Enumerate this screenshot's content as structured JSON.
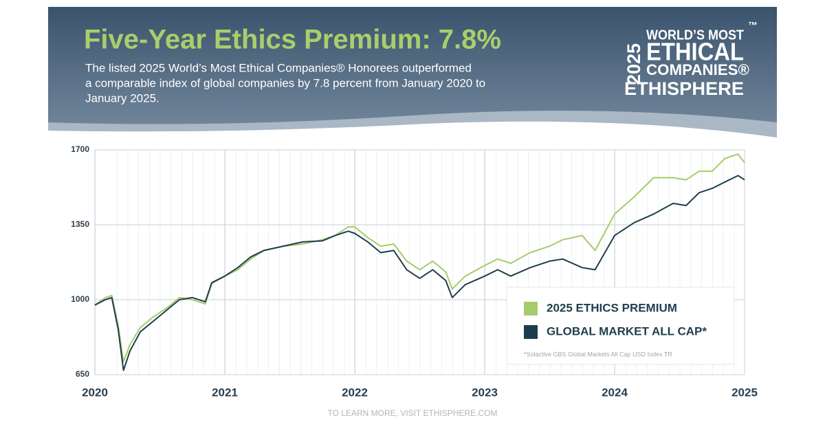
{
  "header": {
    "title": "Five-Year Ethics Premium: 7.8%",
    "subtitle": [
      "The listed 2025 World’s Most Ethical Companies® Honorees outperformed",
      "a comparable index of global companies by 7.8 percent  from January 2020 to",
      "January 2025."
    ],
    "logo": {
      "year": "2025",
      "line1": "WORLD’S MOST",
      "line2": "ETHICAL",
      "line3": "COMPANIES®",
      "brand": "ETHISPHERE",
      "tm": "™"
    }
  },
  "chart_data": {
    "type": "line",
    "x": [
      2020.0,
      2020.08,
      2020.13,
      2020.18,
      2020.22,
      2020.27,
      2020.35,
      2020.45,
      2020.55,
      2020.65,
      2020.75,
      2020.85,
      2020.9,
      2021.0,
      2021.1,
      2021.2,
      2021.3,
      2021.45,
      2021.6,
      2021.75,
      2021.85,
      2021.95,
      2022.0,
      2022.1,
      2022.2,
      2022.3,
      2022.4,
      2022.5,
      2022.6,
      2022.7,
      2022.75,
      2022.85,
      2023.0,
      2023.1,
      2023.2,
      2023.35,
      2023.5,
      2023.6,
      2023.75,
      2023.85,
      2024.0,
      2024.15,
      2024.3,
      2024.45,
      2024.55,
      2024.65,
      2024.75,
      2024.85,
      2024.95,
      2025.0
    ],
    "series": [
      {
        "name": "2025 ETHICS PREMIUM",
        "color": "#a6cb6b",
        "values": [
          975,
          1010,
          1020,
          880,
          710,
          790,
          870,
          920,
          960,
          1010,
          1000,
          980,
          1075,
          1110,
          1140,
          1190,
          1230,
          1250,
          1260,
          1280,
          1300,
          1340,
          1340,
          1290,
          1250,
          1260,
          1180,
          1140,
          1180,
          1130,
          1050,
          1110,
          1160,
          1190,
          1170,
          1220,
          1250,
          1280,
          1300,
          1230,
          1400,
          1480,
          1570,
          1570,
          1560,
          1600,
          1600,
          1660,
          1680,
          1640
        ]
      },
      {
        "name": "GLOBAL MARKET ALL CAP*",
        "color": "#1e3d4c",
        "values": [
          975,
          1000,
          1010,
          860,
          670,
          760,
          850,
          900,
          950,
          1000,
          1010,
          990,
          1080,
          1110,
          1150,
          1200,
          1230,
          1250,
          1270,
          1275,
          1300,
          1320,
          1310,
          1270,
          1220,
          1230,
          1140,
          1100,
          1140,
          1090,
          1010,
          1070,
          1110,
          1140,
          1110,
          1150,
          1180,
          1190,
          1150,
          1140,
          1300,
          1360,
          1400,
          1450,
          1440,
          1500,
          1520,
          1550,
          1580,
          1560
        ]
      }
    ],
    "xlim": [
      2020,
      2025
    ],
    "xticks": [
      2020,
      2021,
      2022,
      2023,
      2024,
      2025
    ],
    "ylim": [
      650,
      1700
    ],
    "yticks": [
      650,
      1000,
      1350,
      1700
    ],
    "grid": true,
    "footnote": "*Solactive GBS Global Markets All Cap USD Index TR"
  },
  "footer": "TO LEARN MORE, VISIT ETHISPHERE.COM"
}
